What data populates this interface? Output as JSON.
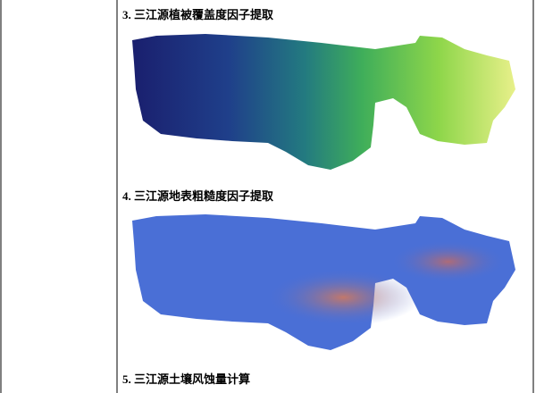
{
  "sections": [
    {
      "heading": "3.  三江源植被覆盖度因子提取"
    },
    {
      "heading": "4.  三江源地表粗糙度因子提取"
    },
    {
      "heading": "5.  三江源土壤风蚀量计算"
    }
  ]
}
